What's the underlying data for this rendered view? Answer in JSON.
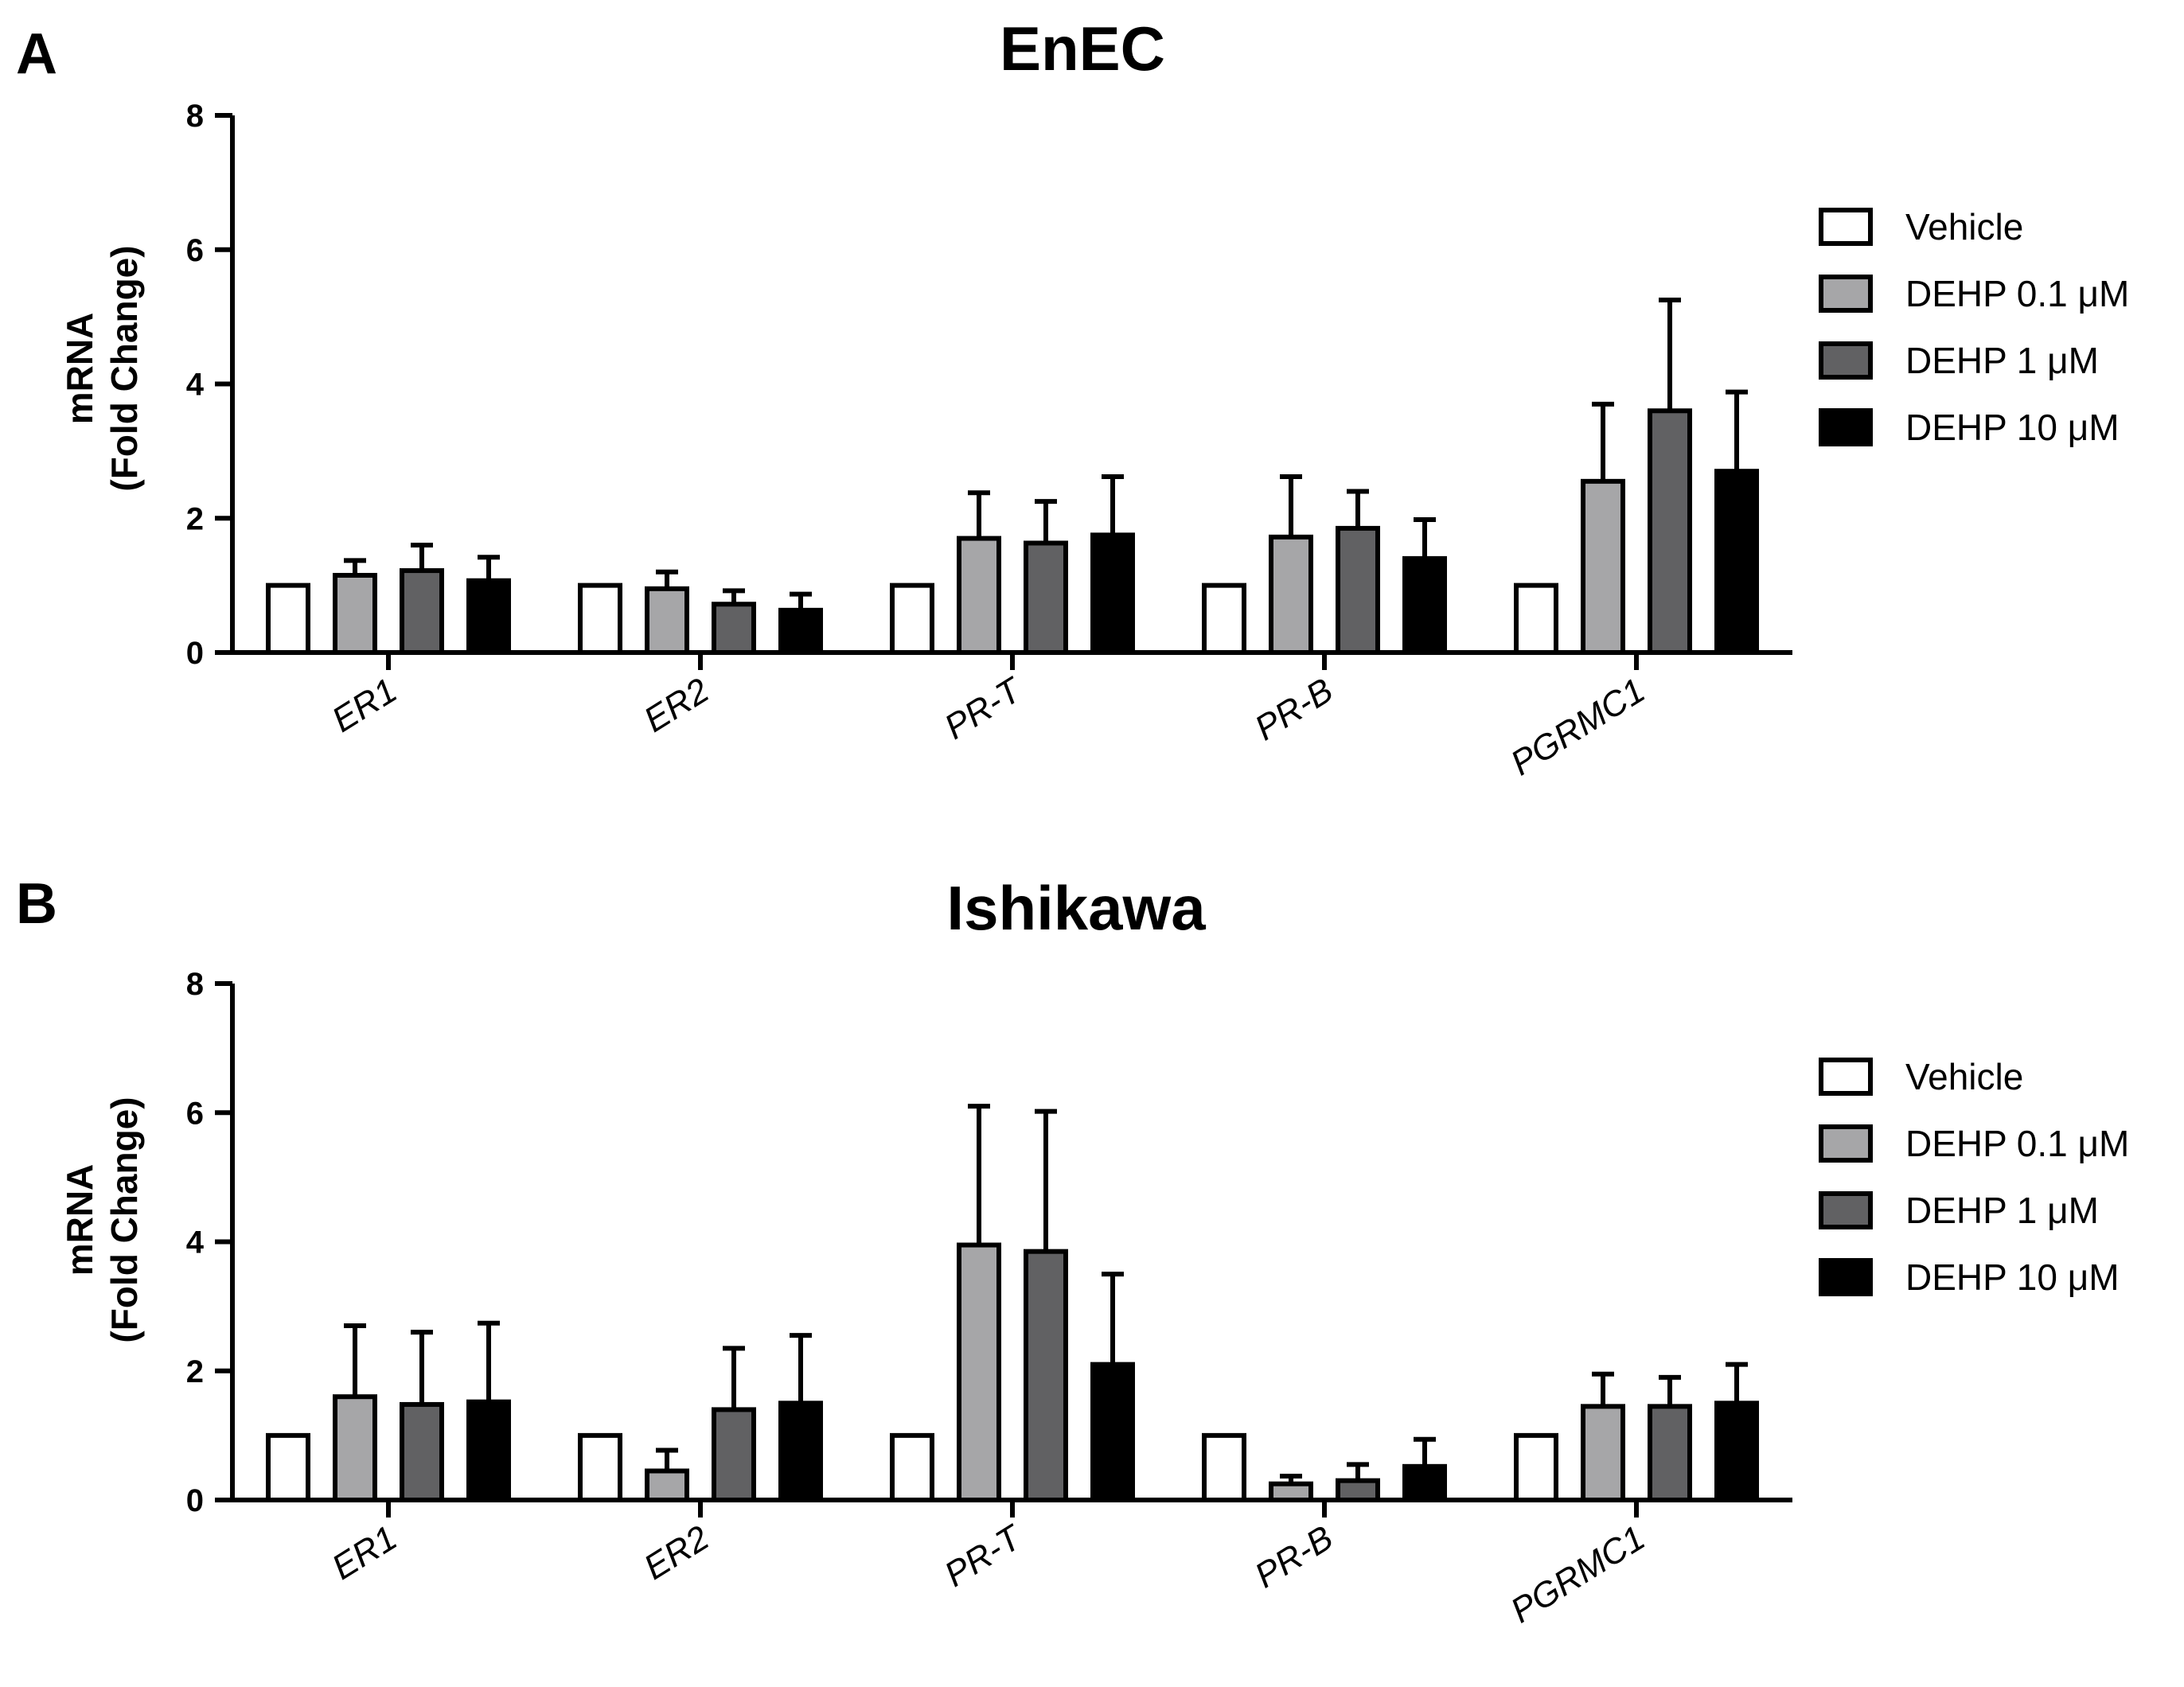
{
  "chart_data": [
    {
      "panel": "A",
      "type": "bar",
      "title": "EnEC",
      "xlabel": "",
      "ylabel": [
        "mRNA",
        "(Fold Change)"
      ],
      "ylim": [
        0,
        8
      ],
      "yticks": [
        0,
        2,
        4,
        6,
        8
      ],
      "categories": [
        "ER1",
        "ER2",
        "PR-T",
        "PR-B",
        "PGRMC1"
      ],
      "legend_position": "right",
      "series": [
        {
          "name": "Vehicle",
          "color": "#ffffff",
          "values": [
            1.0,
            1.0,
            1.0,
            1.0,
            1.0
          ],
          "errors": [
            0,
            0,
            0,
            0,
            0
          ]
        },
        {
          "name": "DEHP 0.1 μM",
          "color": "#a6a6a8",
          "values": [
            1.15,
            0.95,
            1.7,
            1.72,
            2.55
          ],
          "errors": [
            0.22,
            0.25,
            0.68,
            0.9,
            1.15
          ]
        },
        {
          "name": "DEHP 1 μM",
          "color": "#616163",
          "values": [
            1.22,
            0.72,
            1.63,
            1.85,
            3.6
          ],
          "errors": [
            0.38,
            0.2,
            0.62,
            0.55,
            1.65
          ]
        },
        {
          "name": "DEHP 10 μM",
          "color": "#000000",
          "values": [
            1.07,
            0.63,
            1.75,
            1.4,
            2.7
          ],
          "errors": [
            0.35,
            0.24,
            0.87,
            0.58,
            1.18
          ]
        }
      ]
    },
    {
      "panel": "B",
      "type": "bar",
      "title": "Ishikawa",
      "xlabel": "",
      "ylabel": [
        "mRNA",
        "(Fold Change)"
      ],
      "ylim": [
        0,
        8
      ],
      "yticks": [
        0,
        2,
        4,
        6,
        8
      ],
      "categories": [
        "ER1",
        "ER2",
        "PR-T",
        "PR-B",
        "PGRMC1"
      ],
      "legend_position": "right",
      "series": [
        {
          "name": "Vehicle",
          "color": "#ffffff",
          "values": [
            1.0,
            1.0,
            1.0,
            1.0,
            1.0
          ],
          "errors": [
            0,
            0,
            0,
            0,
            0
          ]
        },
        {
          "name": "DEHP 0.1 μM",
          "color": "#a6a6a8",
          "values": [
            1.6,
            0.45,
            3.95,
            0.25,
            1.45
          ],
          "errors": [
            1.1,
            0.32,
            2.15,
            0.12,
            0.5
          ]
        },
        {
          "name": "DEHP 1 μM",
          "color": "#616163",
          "values": [
            1.48,
            1.4,
            3.85,
            0.3,
            1.45
          ],
          "errors": [
            1.12,
            0.95,
            2.17,
            0.25,
            0.45
          ]
        },
        {
          "name": "DEHP 10 μM",
          "color": "#000000",
          "values": [
            1.52,
            1.5,
            2.1,
            0.52,
            1.5
          ],
          "errors": [
            1.22,
            1.05,
            1.4,
            0.42,
            0.6
          ]
        }
      ]
    }
  ]
}
